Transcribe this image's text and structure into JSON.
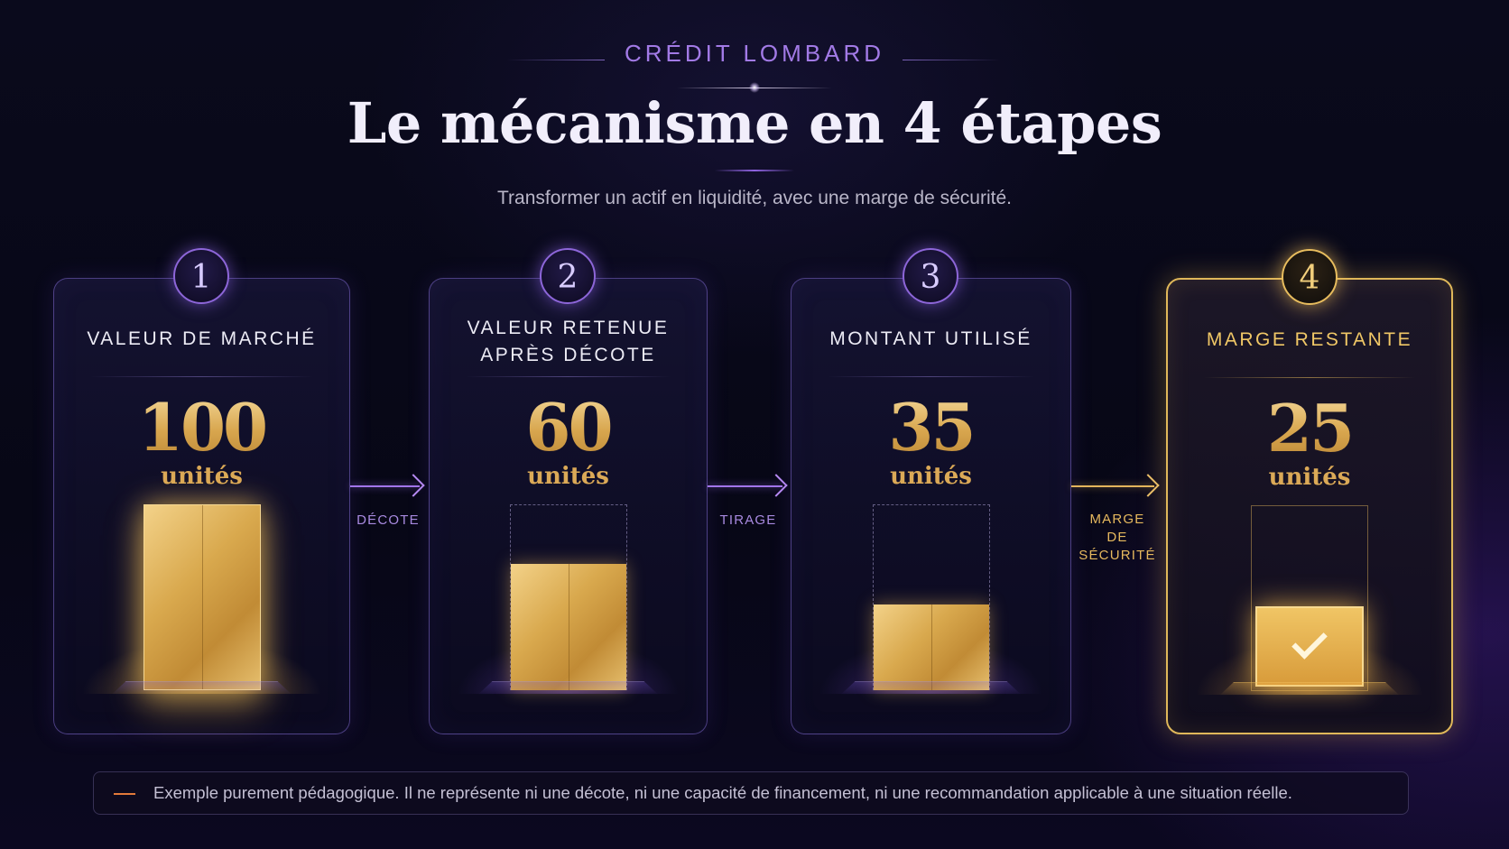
{
  "header": {
    "eyebrow": "CRÉDIT LOMBARD",
    "title": "Le mécanisme en 4 étapes",
    "subtitle": "Transformer un actif en liquidité, avec une marge de sécurité."
  },
  "steps": [
    {
      "number": "1",
      "label": "VALEUR DE MARCHÉ",
      "value": "100",
      "unit": "unités",
      "fill_fraction": 1.0
    },
    {
      "number": "2",
      "label_line1": "VALEUR RETENUE",
      "label_line2": "APRÈS DÉCOTE",
      "value": "60",
      "unit": "unités",
      "fill_fraction": 0.68
    },
    {
      "number": "3",
      "label": "MONTANT UTILISÉ",
      "value": "35",
      "unit": "unités",
      "fill_fraction": 0.46
    },
    {
      "number": "4",
      "label": "MARGE RESTANTE",
      "value": "25",
      "unit": "unités",
      "fill_fraction": 0.45
    }
  ],
  "arrows": [
    {
      "label": "DÉCOTE"
    },
    {
      "label": "TIRAGE"
    },
    {
      "label_line1": "MARGE",
      "label_line2": "DE SÉCURITÉ"
    }
  ],
  "footer": {
    "note": "Exemple purement pédagogique. Il ne représente ni une décote, ni une capacité de financement, ni une recommandation applicable à une situation réelle."
  },
  "colors": {
    "accent_purple": "#a27ae6",
    "accent_gold": "#e0b85a",
    "note_dash": "#e27a3a"
  }
}
